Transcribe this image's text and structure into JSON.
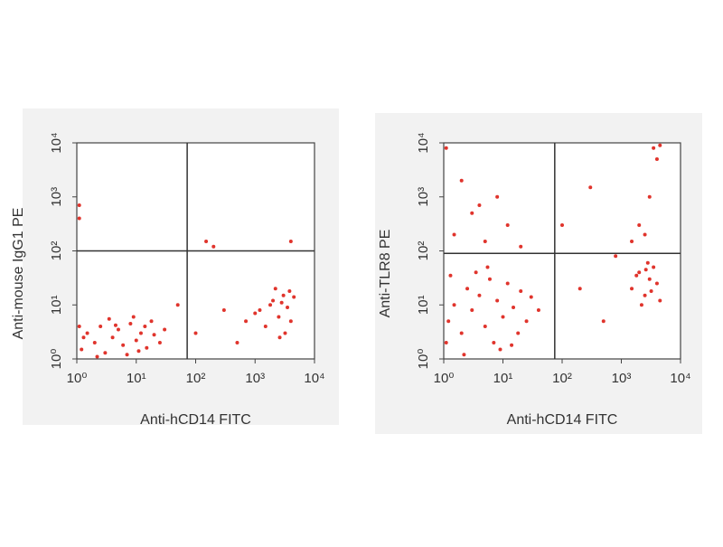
{
  "chart_data": [
    {
      "type": "scatter",
      "x_label": "Anti-hCD14 FITC",
      "y_label": "Anti-mouse IgG1 PE",
      "log_x": true,
      "log_y": true,
      "color": "#e0342c",
      "xlim": [
        1,
        10000
      ],
      "ylim": [
        1,
        10000
      ],
      "xticks": [
        {
          "value": 1,
          "label": "10⁰"
        },
        {
          "value": 10,
          "label": "10¹"
        },
        {
          "value": 100,
          "label": "10²"
        },
        {
          "value": 1000,
          "label": "10³"
        },
        {
          "value": 10000,
          "label": "10⁴"
        }
      ],
      "yticks": [
        {
          "value": 1,
          "label": "10⁰"
        },
        {
          "value": 10,
          "label": "10¹"
        },
        {
          "value": 100,
          "label": "10²"
        },
        {
          "value": 1000,
          "label": "10³"
        },
        {
          "value": 10000,
          "label": "10⁴"
        }
      ],
      "gate_x": 72,
      "gate_y": 100,
      "x": [
        1.2,
        1.5,
        2,
        2.5,
        3,
        4,
        5,
        6,
        8,
        10,
        12,
        15,
        18,
        20,
        25,
        1.1,
        3.5,
        7,
        9,
        14,
        1.3,
        2.2,
        4.5,
        30,
        11,
        1200,
        1500,
        2000,
        2500,
        3000,
        3500,
        4000,
        2200,
        1800,
        3200,
        2800,
        4500,
        1000,
        2600,
        3800,
        100,
        300,
        500,
        150,
        200,
        4000,
        1.1,
        1.1,
        50,
        700
      ],
      "y": [
        1.5,
        3,
        2,
        4,
        1.3,
        2.5,
        3.5,
        1.8,
        4.5,
        2.2,
        3,
        1.6,
        5,
        2.8,
        2,
        4,
        5.5,
        1.2,
        6,
        4,
        2.5,
        1.1,
        4.2,
        3.5,
        1.4,
        8,
        4,
        12,
        6,
        15,
        9,
        5,
        20,
        10,
        3,
        11,
        14,
        7,
        2.5,
        18,
        3,
        8,
        2,
        150,
        120,
        150,
        700,
        400,
        10,
        5
      ]
    },
    {
      "type": "scatter",
      "x_label": "Anti-hCD14 FITC",
      "y_label": "Anti-TLR8 PE",
      "log_x": true,
      "log_y": true,
      "color": "#e0342c",
      "xlim": [
        1,
        10000
      ],
      "ylim": [
        1,
        10000
      ],
      "xticks": [
        {
          "value": 1,
          "label": "10⁰"
        },
        {
          "value": 10,
          "label": "10¹"
        },
        {
          "value": 100,
          "label": "10²"
        },
        {
          "value": 1000,
          "label": "10³"
        },
        {
          "value": 10000,
          "label": "10⁴"
        }
      ],
      "yticks": [
        {
          "value": 1,
          "label": "10⁰"
        },
        {
          "value": 10,
          "label": "10¹"
        },
        {
          "value": 100,
          "label": "10²"
        },
        {
          "value": 1000,
          "label": "10³"
        },
        {
          "value": 10000,
          "label": "10⁴"
        }
      ],
      "gate_x": 75,
      "gate_y": 90,
      "x": [
        1.2,
        1.5,
        2,
        2.5,
        3,
        4,
        5,
        6,
        8,
        10,
        12,
        15,
        20,
        25,
        30,
        1.1,
        3.5,
        7,
        9,
        40,
        1.3,
        2.2,
        18,
        5.5,
        14,
        1.5,
        3,
        5,
        8,
        2,
        12,
        20,
        1.1,
        4,
        1500,
        2000,
        2500,
        3000,
        3500,
        4000,
        2200,
        2800,
        1800,
        3200,
        4500,
        2600,
        2000,
        3000,
        4000,
        2500,
        3500,
        1500,
        4500,
        200,
        500,
        100,
        800,
        300
      ],
      "y": [
        5,
        10,
        3,
        20,
        8,
        15,
        4,
        30,
        12,
        6,
        25,
        9,
        18,
        5,
        14,
        2,
        40,
        2,
        1.5,
        8,
        35,
        1.2,
        3,
        50,
        1.8,
        200,
        500,
        150,
        1000,
        2000,
        300,
        120,
        8000,
        700,
        20,
        40,
        15,
        30,
        50,
        25,
        10,
        60,
        35,
        18,
        12,
        45,
        300,
        1000,
        5000,
        200,
        8000,
        150,
        9000,
        20,
        5,
        300,
        80,
        1500
      ]
    }
  ]
}
